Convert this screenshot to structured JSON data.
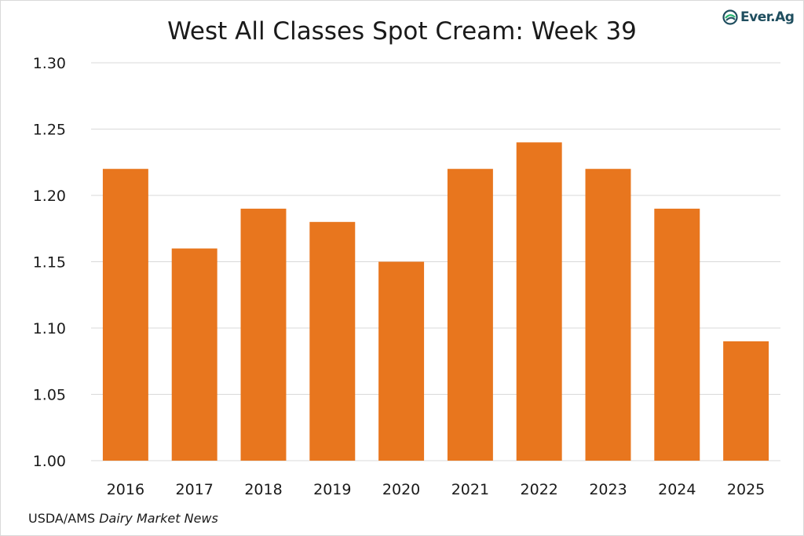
{
  "chart_data": {
    "type": "bar",
    "title": "West All Classes Spot Cream: Week 39",
    "xlabel": "",
    "ylabel": "",
    "categories": [
      "2016",
      "2017",
      "2018",
      "2019",
      "2020",
      "2021",
      "2022",
      "2023",
      "2024",
      "2025"
    ],
    "values": [
      1.22,
      1.16,
      1.19,
      1.18,
      1.15,
      1.22,
      1.24,
      1.22,
      1.19,
      1.09
    ],
    "ylim": [
      1.0,
      1.3
    ],
    "yticks": [
      "1.00",
      "1.05",
      "1.10",
      "1.15",
      "1.20",
      "1.25",
      "1.30"
    ],
    "grid": true,
    "legend": "none",
    "bar_color": "#e8761e",
    "grid_color": "#d9d9d9"
  },
  "logo": {
    "text": "Ever.Ag",
    "color": "#1f4e5f",
    "accent": "#2bb673"
  },
  "source": {
    "prefix": "USDA/AMS ",
    "italic": "Dairy Market News"
  }
}
